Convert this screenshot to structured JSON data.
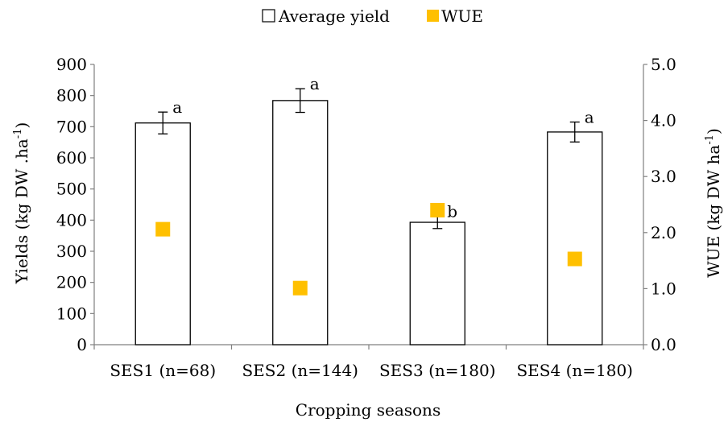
{
  "chart_data": {
    "type": "bar",
    "categories": [
      "SES1 (n=68)",
      "SES2 (n=144)",
      "SES3 (n=180)",
      "SES4 (n=180)"
    ],
    "series": [
      {
        "name": "Average yield",
        "axis": "left",
        "kind": "bar",
        "values": [
          712,
          784,
          393,
          683
        ],
        "error": [
          35,
          38,
          20,
          32
        ],
        "significance": [
          "a",
          "a",
          "b",
          "a"
        ]
      },
      {
        "name": "WUE",
        "axis": "right",
        "kind": "marker",
        "values": [
          2.06,
          1.01,
          2.4,
          1.53
        ]
      }
    ],
    "xlabel": "Cropping seasons",
    "ylabel": "Yields (kg DW .ha",
    "ylabel_sup": "-1",
    "ylabel_end": ")",
    "y2label": "WUE (kg DW ha",
    "y2label_sup": "-1",
    "y2label_end": ")",
    "ylim": [
      0,
      900
    ],
    "y_ticks": [
      "0",
      "100",
      "200",
      "300",
      "400",
      "500",
      "600",
      "700",
      "800",
      "900"
    ],
    "y2lim": [
      0,
      5
    ],
    "y2_ticks": [
      "0.0",
      "1.0",
      "2.0",
      "3.0",
      "4.0",
      "5.0"
    ],
    "legend_position": "top-center",
    "grid": false,
    "colors": {
      "bar_fill": "#ffffff",
      "bar_stroke": "#000000",
      "wue_marker": "#FFC000",
      "axis": "#808080"
    }
  }
}
